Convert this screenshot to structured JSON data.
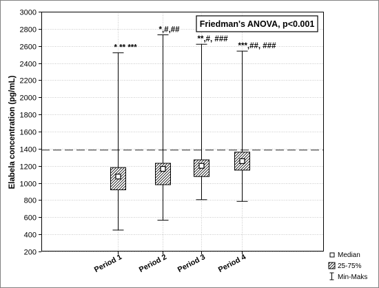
{
  "chart_data": {
    "type": "boxplot",
    "title": "Friedman's ANOVA, p<0.001",
    "ylabel": "Elabela concentration (pg/mL)",
    "xlabel": "",
    "ylim": [
      200,
      3000
    ],
    "yticks": [
      200,
      400,
      600,
      800,
      1000,
      1200,
      1400,
      1600,
      1800,
      2000,
      2200,
      2400,
      2600,
      2800,
      3000
    ],
    "grid": true,
    "reference_line": 1385,
    "categories": [
      "Period 1",
      "Period 2",
      "Period 3",
      "Period 4"
    ],
    "boxes": [
      {
        "median": 1075,
        "q1": 920,
        "q3": 1180,
        "min": 450,
        "max": 2520,
        "annotation": "* ** ***"
      },
      {
        "median": 1165,
        "q1": 980,
        "q3": 1230,
        "min": 565,
        "max": 2730,
        "annotation": "*,#,##"
      },
      {
        "median": 1200,
        "q1": 1075,
        "q3": 1270,
        "min": 805,
        "max": 2620,
        "annotation": "**,#, ###"
      },
      {
        "median": 1255,
        "q1": 1150,
        "q3": 1360,
        "min": 785,
        "max": 2540,
        "annotation": "***,##, ###"
      }
    ],
    "legend": [
      "Median",
      "25-75%",
      "Min-Maks"
    ],
    "legend_placement": "bottom-right"
  }
}
